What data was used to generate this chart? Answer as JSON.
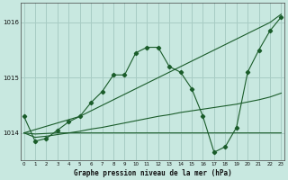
{
  "title": "Graphe pression niveau de la mer (hPa)",
  "bg_color": "#c8e8e0",
  "grid_color": "#a8ccc4",
  "line_color": "#1a5c2a",
  "hours": [
    0,
    1,
    2,
    3,
    4,
    5,
    6,
    7,
    8,
    9,
    10,
    11,
    12,
    13,
    14,
    15,
    16,
    17,
    18,
    19,
    20,
    21,
    22,
    23
  ],
  "series_main": [
    1014.3,
    1013.85,
    1013.9,
    1014.05,
    1014.2,
    1014.3,
    1014.55,
    1014.75,
    1015.05,
    1015.05,
    1015.45,
    1015.55,
    1015.55,
    1015.2,
    1015.1,
    1014.8,
    1014.3,
    1013.65,
    1013.75,
    1014.1,
    1015.1,
    1015.5,
    1015.85,
    1016.1
  ],
  "series_straight_fast": [
    1014.0,
    1014.06,
    1014.12,
    1014.18,
    1014.24,
    1014.3,
    1014.4,
    1014.5,
    1014.6,
    1014.7,
    1014.8,
    1014.9,
    1015.0,
    1015.1,
    1015.2,
    1015.3,
    1015.4,
    1015.5,
    1015.6,
    1015.7,
    1015.8,
    1015.9,
    1016.0,
    1016.15
  ],
  "series_slow_rise": [
    1014.0,
    1013.92,
    1013.94,
    1013.97,
    1014.0,
    1014.03,
    1014.07,
    1014.1,
    1014.14,
    1014.18,
    1014.22,
    1014.26,
    1014.3,
    1014.33,
    1014.37,
    1014.4,
    1014.43,
    1014.46,
    1014.49,
    1014.52,
    1014.56,
    1014.6,
    1014.65,
    1014.72
  ],
  "series_flat": [
    1014.0,
    1013.98,
    1013.99,
    1014.0,
    1014.0,
    1014.0,
    1014.0,
    1014.0,
    1014.0,
    1014.0,
    1014.0,
    1014.0,
    1014.0,
    1014.0,
    1014.0,
    1014.0,
    1014.0,
    1014.0,
    1014.0,
    1014.0,
    1014.0,
    1014.0,
    1014.0,
    1014.0
  ],
  "ylim": [
    1013.5,
    1016.35
  ],
  "xlim": [
    -0.3,
    23.3
  ],
  "yticks": [
    1014.0,
    1015.0,
    1016.0
  ],
  "xticks": [
    0,
    1,
    2,
    3,
    4,
    5,
    6,
    7,
    8,
    9,
    10,
    11,
    12,
    13,
    14,
    15,
    16,
    17,
    18,
    19,
    20,
    21,
    22,
    23
  ]
}
